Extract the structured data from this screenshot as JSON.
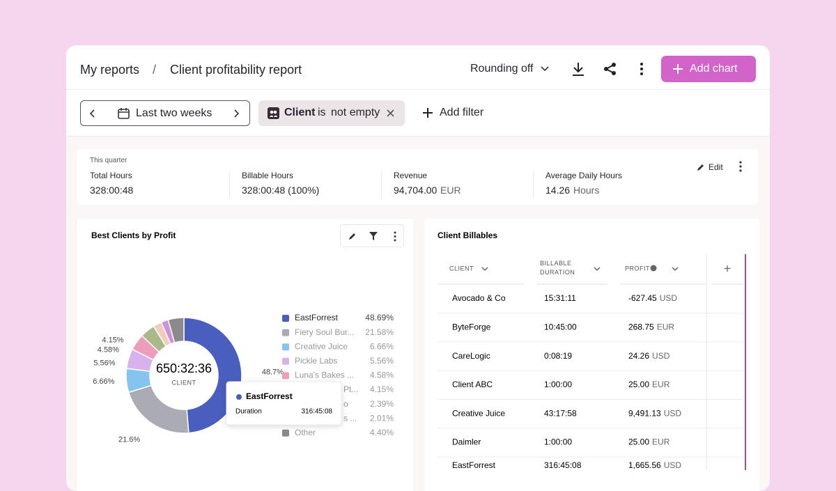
{
  "header": {
    "breadcrumb": [
      "My reports",
      "/",
      "Client profitability report"
    ],
    "rounding": "Rounding off",
    "add_chart": "Add chart"
  },
  "filters": {
    "date_range": "Last two weeks",
    "field": "Client",
    "operator": "is",
    "condition": "not empty",
    "add_filter": "Add filter"
  },
  "summary": {
    "period": "This quarter",
    "edit": "Edit",
    "metrics": [
      {
        "label": "Total Hours",
        "value": "328:00:48"
      },
      {
        "label": "Billable Hours",
        "value": "328:00:48 (100%)"
      },
      {
        "label": "Revenue",
        "value": "94,704.00",
        "unit": "EUR"
      },
      {
        "label": "Average Daily Hours",
        "value": "14.26",
        "unit": "Hours"
      }
    ]
  },
  "chart_data": {
    "type": "donut",
    "title": "Best Clients by Profit",
    "center_value": "650:32:36",
    "center_label": "CLIENT",
    "categories": [
      "EastForrest",
      "Fiery Soul Bur...",
      "Creative Juice",
      "Pickle Labs",
      "Luna's Bakes ...",
      "Pt...",
      "o",
      "s ...",
      "Other"
    ],
    "values": [
      48.69,
      21.58,
      6.66,
      5.56,
      4.58,
      4.15,
      2.39,
      2.01,
      4.4
    ],
    "value_labels": [
      "48.69%",
      "21.58%",
      "6.66%",
      "5.56%",
      "4.58%",
      "4.15%",
      "2.39%",
      "2.01%",
      "4.40%"
    ],
    "slice_labels": [
      "48.7%",
      "21.6%",
      "6.66%",
      "5.56%",
      "4.58%",
      "4.15%",
      null,
      null,
      null
    ],
    "colors": [
      "#4a5ec0",
      "#ababb3",
      "#86c4f0",
      "#d6b2ef",
      "#ef9dbc",
      "#a9b98a",
      "#f1cdbd",
      "#cd93da",
      "#8b8989"
    ],
    "tooltip": {
      "name": "EastForrest",
      "label": "Duration",
      "value": "316:45:08"
    }
  },
  "table": {
    "title": "Client Billables",
    "columns": [
      "CLIENT",
      "BILLABLE DURATION",
      "PROFIT"
    ],
    "rows": [
      [
        "Avocado & Co",
        "15:31:11",
        "-627.45",
        "USD"
      ],
      [
        "ByteForge",
        "10:45:00",
        "268.75",
        "EUR"
      ],
      [
        "CareLogic",
        "0:08:19",
        "24.26",
        "USD"
      ],
      [
        "Client ABC",
        "1:00:00",
        "25.00",
        "EUR"
      ],
      [
        "Creative Juice",
        "43:17:58",
        "9,491.13",
        "USD"
      ],
      [
        "Daimler",
        "1:00:00",
        "25.00",
        "EUR"
      ],
      [
        "EastForrest",
        "316:45:08",
        "1,665.56",
        "USD"
      ]
    ]
  }
}
